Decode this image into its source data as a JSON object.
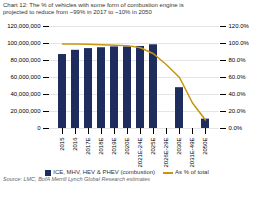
{
  "chart_data": {
    "type": "bar",
    "title": "Chart 12: The % of vehicles with some form of combustion engine is",
    "subtitle": "projected to reduce from ~99% in 2017 to ~10% in 2050",
    "source": "Source: LMC, BofA Merrill Lynch Global Research estimates",
    "categories": [
      "2015",
      "2016",
      "2017E",
      "2018E",
      "2019E",
      "2020E",
      "2021E-24E",
      "2025E",
      "2026E-29E",
      "2030E",
      "2031E-49E",
      "2050E"
    ],
    "series": [
      {
        "name": "ICE, MHV, HEV & PHEV (combustion)",
        "type": "bar",
        "color": "#1e2d5e",
        "values": [
          87000000,
          92000000,
          94000000,
          95000000,
          96000000,
          96000000,
          96500000,
          98500000,
          0,
          48000000,
          0,
          11000000
        ]
      },
      {
        "name": "As % of total",
        "type": "line",
        "color": "#c8960c",
        "axis": "y2",
        "values": [
          99.5,
          99.5,
          99.0,
          98.5,
          98.0,
          97.5,
          95.0,
          88.0,
          75.0,
          60.0,
          30.0,
          10.0
        ]
      }
    ],
    "ylim": [
      0,
      120000000
    ],
    "yticks": [
      0,
      {
        "value": 20000000,
        "label": "20,000,000"
      },
      {
        "value": 40000000,
        "label": "40,000,000"
      },
      {
        "value": 60000000,
        "label": "60,000,000"
      },
      {
        "value": 80000000,
        "label": "80,000,000"
      },
      {
        "value": 100000000,
        "label": "100,000,000"
      },
      {
        "value": 120000000,
        "label": "120,000,000"
      }
    ],
    "y2lim": [
      0.0,
      120.0
    ],
    "y2ticks": [
      {
        "value": 0.0,
        "label": "0.0%"
      },
      {
        "value": 20.0,
        "label": "20.0%"
      },
      {
        "value": 40.0,
        "label": "40.0%"
      },
      {
        "value": 60.0,
        "label": "60.0%"
      },
      {
        "value": 80.0,
        "label": "80.0%"
      },
      {
        "value": 100.0,
        "label": "100.0%"
      },
      {
        "value": 120.0,
        "label": "120.0%"
      }
    ],
    "grid": true,
    "legend": "bottom"
  }
}
